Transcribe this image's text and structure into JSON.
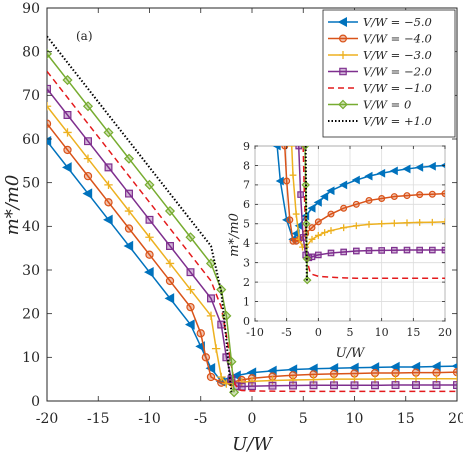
{
  "chart_data": [
    {
      "type": "line",
      "annotation": "(a)",
      "xlabel": "U/W",
      "ylabel": "m*/m0",
      "xlim": [
        -20,
        20
      ],
      "ylim": [
        0,
        90
      ],
      "xticks": [
        "-20",
        "-15",
        "-10",
        "-5",
        "0",
        "5",
        "10",
        "15",
        "20"
      ],
      "yticks": [
        "0",
        "10",
        "20",
        "30",
        "40",
        "50",
        "60",
        "70",
        "80",
        "90"
      ],
      "grid": false,
      "legend": "top-right",
      "series": [
        {
          "name": "V/W = −5.0",
          "color": "#0072BD",
          "marker": "triangle-left",
          "style": "solid",
          "x": [
            -20,
            -18,
            -16,
            -14,
            -12,
            -10,
            -8,
            -6,
            -5,
            -4,
            -3,
            -2.5,
            -1.5,
            0,
            2,
            4,
            6,
            8,
            10,
            12,
            14,
            16,
            18,
            20
          ],
          "y": [
            59.5,
            53.5,
            47.5,
            41.5,
            35.5,
            29.5,
            23.5,
            17.5,
            12.5,
            7.5,
            4.5,
            4.6,
            5.8,
            6.5,
            6.9,
            7.2,
            7.4,
            7.5,
            7.6,
            7.7,
            7.8,
            7.8,
            7.9,
            8.0
          ]
        },
        {
          "name": "V/W = −4.0",
          "color": "#D95319",
          "marker": "circle",
          "style": "solid",
          "x": [
            -20,
            -18,
            -16,
            -14,
            -12,
            -10,
            -8,
            -6,
            -5,
            -4.5,
            -4,
            -3,
            -2,
            -1,
            0,
            2,
            4,
            6,
            8,
            10,
            12,
            14,
            16,
            18,
            20
          ],
          "y": [
            63.5,
            57.5,
            51.5,
            45.5,
            39.5,
            33.5,
            27.5,
            21.5,
            15.5,
            10,
            5.5,
            4.2,
            4.3,
            4.8,
            5.2,
            5.6,
            5.9,
            6.1,
            6.2,
            6.3,
            6.4,
            6.4,
            6.5,
            6.5,
            6.6
          ]
        },
        {
          "name": "V/W = −3.0",
          "color": "#EDB120",
          "marker": "plus",
          "style": "solid",
          "x": [
            -20,
            -18,
            -16,
            -14,
            -12,
            -10,
            -8,
            -6,
            -4,
            -3.5,
            -3,
            -2.5,
            -2,
            -1,
            0,
            2,
            4,
            6,
            8,
            10,
            12,
            14,
            16,
            18,
            20
          ],
          "y": [
            67.5,
            61.5,
            55.5,
            49.5,
            43.5,
            37.5,
            31.5,
            25.5,
            19.5,
            12,
            5.5,
            4.0,
            4.0,
            4.3,
            4.5,
            4.7,
            4.8,
            4.9,
            5.0,
            5.0,
            5.0,
            5.1,
            5.1,
            5.1,
            5.1
          ]
        },
        {
          "name": "V/W = −2.0",
          "color": "#7E2F8E",
          "marker": "square",
          "style": "solid",
          "x": [
            -20,
            -18,
            -16,
            -14,
            -12,
            -10,
            -8,
            -6,
            -4,
            -3,
            -2.5,
            -2,
            -1.5,
            -1,
            0,
            2,
            4,
            6,
            8,
            10,
            12,
            14,
            16,
            18,
            20
          ],
          "y": [
            71.5,
            65.5,
            59.5,
            53.5,
            47.5,
            41.5,
            35.5,
            29.5,
            23.5,
            17.5,
            10,
            5,
            3.4,
            3.3,
            3.4,
            3.5,
            3.55,
            3.6,
            3.6,
            3.6,
            3.6,
            3.65,
            3.65,
            3.65,
            3.65
          ]
        },
        {
          "name": "V/W = −1.0",
          "color": "#E41A1C",
          "marker": "none",
          "style": "dashed",
          "x": [
            -20,
            -18,
            -16,
            -14,
            -12,
            -10,
            -8,
            -6,
            -4,
            -3,
            -2.5,
            -2,
            -1.7,
            -1.3,
            -1,
            0,
            2,
            4,
            6,
            8,
            10,
            12,
            14,
            16,
            18,
            20
          ],
          "y": [
            75.5,
            69.5,
            63.5,
            57.5,
            51.5,
            45.5,
            39.5,
            33.5,
            27.5,
            21.5,
            15,
            8,
            4,
            2.6,
            2.4,
            2.3,
            2.25,
            2.2,
            2.2,
            2.2,
            2.2,
            2.2,
            2.2,
            2.2,
            2.2,
            2.2
          ]
        },
        {
          "name": "V/W = 0",
          "color": "#77AC30",
          "marker": "diamond",
          "style": "solid",
          "x": [
            -20,
            -18,
            -16,
            -14,
            -12,
            -10,
            -8,
            -6,
            -4,
            -3,
            -2.5,
            -2,
            -1.75
          ],
          "y": [
            79.5,
            73.5,
            67.5,
            61.5,
            55.5,
            49.5,
            43.5,
            37.5,
            31.5,
            25.5,
            19.5,
            9,
            2
          ]
        },
        {
          "name": "V/W = +1.0",
          "color": "#000000",
          "marker": "none",
          "style": "dotted",
          "x": [
            -20,
            -16,
            -12,
            -8,
            -4,
            -3,
            -2.5,
            -2.2,
            -2.0
          ],
          "y": [
            83.5,
            71.5,
            59.5,
            47.5,
            35.5,
            25,
            14,
            6,
            2
          ]
        }
      ]
    },
    {
      "type": "line",
      "role": "inset",
      "xlabel": "U/W",
      "ylabel": "m*/m0",
      "xlim": [
        -10,
        20
      ],
      "ylim": [
        0,
        9
      ],
      "xticks": [
        "-10",
        "-5",
        "0",
        "5",
        "10",
        "15",
        "20"
      ],
      "yticks": [
        "0",
        "1",
        "2",
        "3",
        "4",
        "5",
        "6",
        "7",
        "8",
        "9"
      ],
      "grid": true,
      "series": [
        {
          "name": "V/W = −5.0",
          "color": "#0072BD",
          "marker": "triangle-left",
          "style": "solid",
          "x": [
            -6.5,
            -6,
            -5,
            -4,
            -3.5,
            -3,
            -2,
            -1,
            0,
            1,
            2,
            4,
            6,
            8,
            10,
            12,
            14,
            16,
            18,
            20
          ],
          "y": [
            9,
            7.2,
            5.2,
            4.2,
            4.5,
            4.9,
            5.4,
            5.8,
            6.1,
            6.4,
            6.7,
            7.0,
            7.25,
            7.45,
            7.6,
            7.72,
            7.82,
            7.9,
            7.96,
            8.0
          ]
        },
        {
          "name": "V/W = −4.0",
          "color": "#D95319",
          "marker": "circle",
          "style": "solid",
          "x": [
            -5.3,
            -5,
            -4.5,
            -4,
            -3.5,
            -3,
            -2,
            -1,
            0,
            2,
            4,
            6,
            8,
            10,
            12,
            14,
            16,
            18,
            20
          ],
          "y": [
            9,
            7.2,
            5.2,
            4.1,
            4.1,
            4.2,
            4.5,
            4.8,
            5.1,
            5.5,
            5.8,
            6.0,
            6.2,
            6.3,
            6.4,
            6.45,
            6.5,
            6.52,
            6.55
          ]
        },
        {
          "name": "V/W = −3.0",
          "color": "#EDB120",
          "marker": "plus",
          "style": "solid",
          "x": [
            -4.2,
            -4,
            -3.5,
            -3,
            -2.5,
            -2,
            -1,
            0,
            1,
            2,
            4,
            6,
            8,
            10,
            12,
            14,
            16,
            18,
            20
          ],
          "y": [
            9,
            7.5,
            5.5,
            4.2,
            3.8,
            3.8,
            4.2,
            4.4,
            4.55,
            4.65,
            4.8,
            4.9,
            4.97,
            5.0,
            5.03,
            5.05,
            5.07,
            5.08,
            5.1
          ]
        },
        {
          "name": "V/W = −2.0",
          "color": "#7E2F8E",
          "marker": "square",
          "style": "solid",
          "x": [
            -3.1,
            -2.8,
            -2.4,
            -2,
            -1.5,
            -1,
            0,
            2,
            4,
            6,
            8,
            10,
            12,
            14,
            16,
            18,
            20
          ],
          "y": [
            9,
            6.5,
            4.3,
            3.4,
            3.25,
            3.3,
            3.4,
            3.5,
            3.55,
            3.6,
            3.62,
            3.63,
            3.64,
            3.65,
            3.65,
            3.65,
            3.65
          ]
        },
        {
          "name": "V/W = −1.0",
          "color": "#E41A1C",
          "marker": "none",
          "style": "dashed",
          "x": [
            -2.4,
            -2.2,
            -2,
            -1.7,
            -1.3,
            -1,
            0,
            2,
            4,
            6,
            8,
            10,
            12,
            14,
            16,
            18,
            20
          ],
          "y": [
            9,
            6.5,
            4.5,
            3.0,
            2.5,
            2.4,
            2.3,
            2.25,
            2.22,
            2.2,
            2.2,
            2.2,
            2.2,
            2.2,
            2.2,
            2.2,
            2.2
          ]
        },
        {
          "name": "V/W = 0",
          "color": "#77AC30",
          "marker": "diamond",
          "style": "solid",
          "x": [
            -2.1,
            -2.0,
            -1.9,
            -1.8,
            -1.75
          ],
          "y": [
            9,
            7.0,
            5.0,
            3.2,
            2.1
          ]
        },
        {
          "name": "V/W = +1.0",
          "color": "#000000",
          "marker": "none",
          "style": "dotted",
          "x": [
            -2.0,
            -1.95,
            -1.9,
            -1.85,
            -1.8
          ],
          "y": [
            9,
            7.0,
            5.0,
            3.0,
            2.0
          ]
        }
      ]
    }
  ]
}
